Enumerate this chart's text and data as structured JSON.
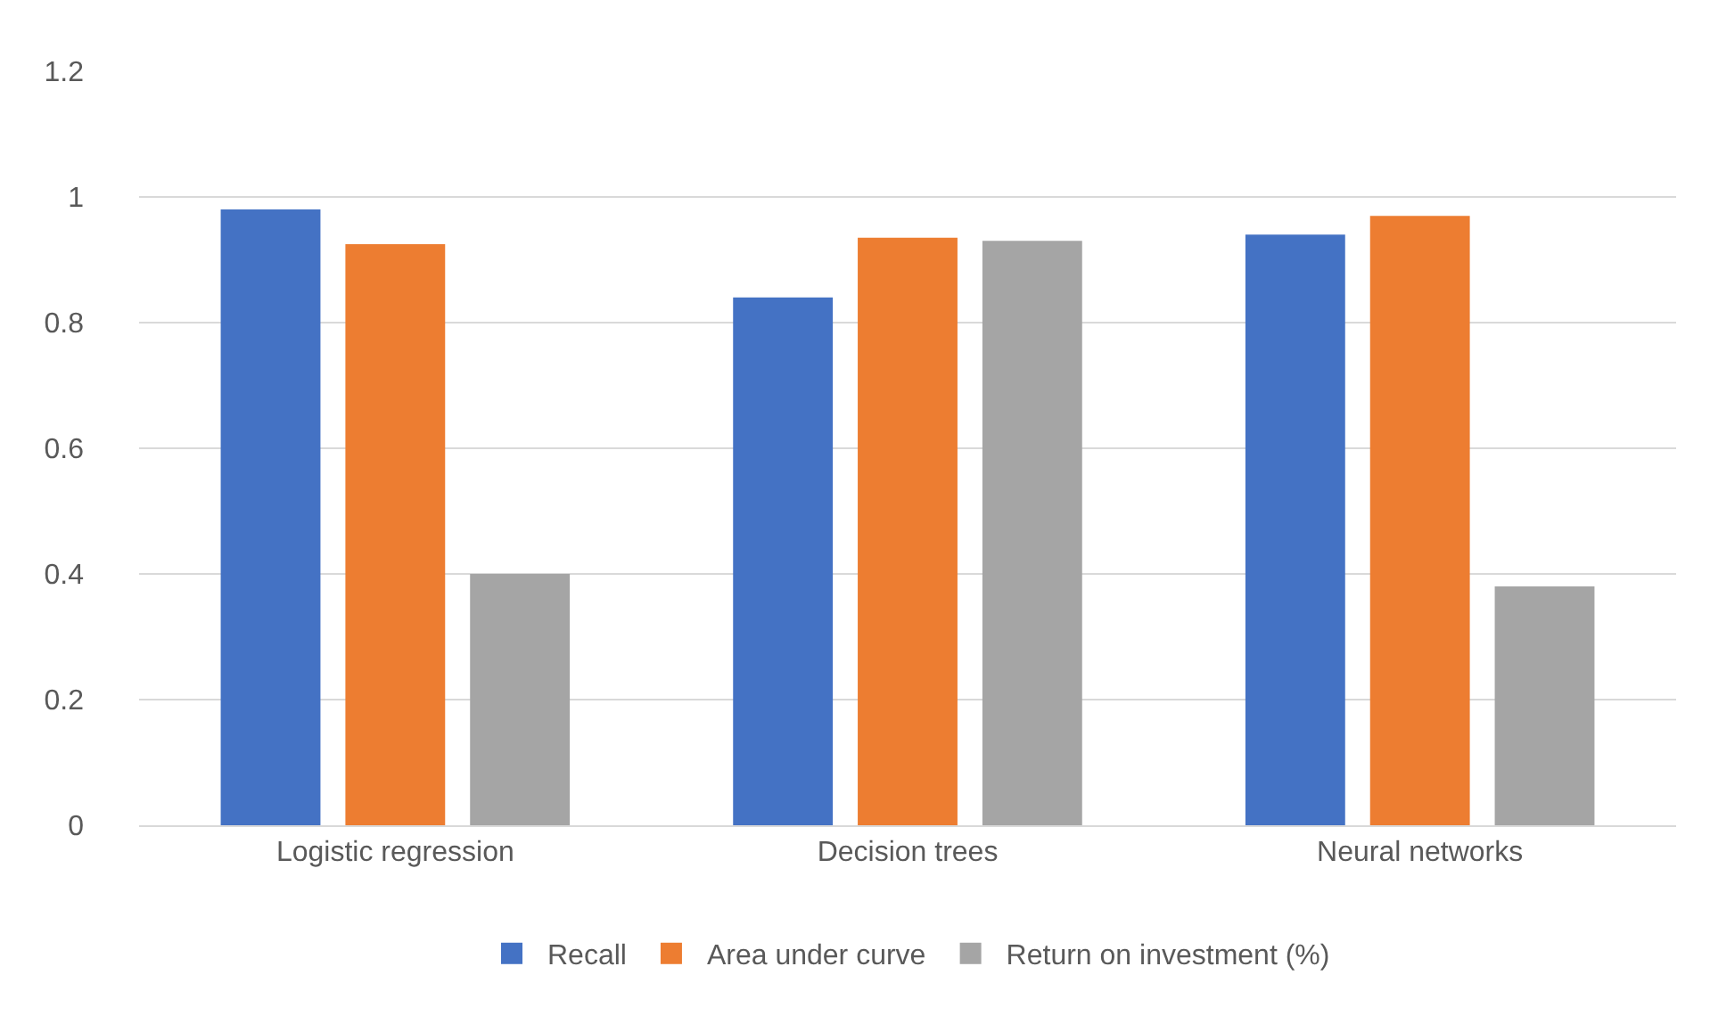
{
  "chart_data": {
    "type": "bar",
    "categories": [
      "Logistic regression",
      "Decision trees",
      "Neural networks"
    ],
    "series": [
      {
        "name": "Recall",
        "color": "#4472c4",
        "values": [
          0.98,
          0.84,
          0.94
        ]
      },
      {
        "name": "Area under curve",
        "color": "#ed7d31",
        "values": [
          0.925,
          0.935,
          0.97
        ]
      },
      {
        "name": "Return on investment (%)",
        "color": "#a5a5a5",
        "values": [
          0.4,
          0.93,
          0.38
        ]
      }
    ],
    "ylim": [
      0,
      1.2
    ],
    "yticks": [
      0,
      0.2,
      0.4,
      0.6,
      0.8,
      1,
      1.2
    ],
    "grid": "y",
    "legend": "bottom"
  }
}
